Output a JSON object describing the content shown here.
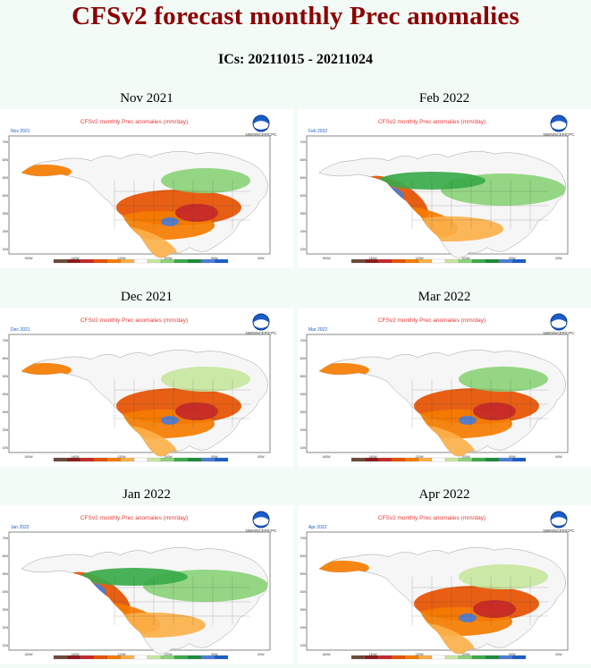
{
  "page": {
    "title": "CFSv2 forecast monthly Prec anomalies",
    "ics": "ICs: 20211015 - 20211024"
  },
  "map_common": {
    "header": "CFSv2 monthly Prec anomalies (mm/day)",
    "agency": "NWS/NCEP/CPC",
    "lat_labels": [
      "70N",
      "60N",
      "50N",
      "40N",
      "30N",
      "20N",
      "10N"
    ],
    "lon_labels": [
      "160W",
      "140W",
      "120W",
      "100W",
      "80W",
      "60W"
    ],
    "palette": [
      "#6b4a3a",
      "#8b1a1a",
      "#c62828",
      "#e65100",
      "#f57c00",
      "#fbb04a",
      "#ffffff",
      "#c8e6a0",
      "#8bd37a",
      "#3aaa4a",
      "#1b8a3a",
      "#4a7dd6",
      "#1a5dc8"
    ],
    "icon": "noaa-logo-icon"
  },
  "panels": [
    {
      "id": "nov-2021",
      "label": "Nov 2021",
      "corner": "Nov 2021",
      "dry_bias": "south"
    },
    {
      "id": "feb-2022",
      "label": "Feb 2022",
      "corner": "Feb 2022",
      "dry_bias": "southwest"
    },
    {
      "id": "dec-2021",
      "label": "Dec 2021",
      "corner": "Dec 2021",
      "dry_bias": "south"
    },
    {
      "id": "mar-2022",
      "label": "Mar 2022",
      "corner": "Mar 2022",
      "dry_bias": "south"
    },
    {
      "id": "jan-2022",
      "label": "Jan 2022",
      "corner": "Jan 2022",
      "dry_bias": "southwest"
    },
    {
      "id": "apr-2022",
      "label": "Apr 2022",
      "corner": "Apr 2022",
      "dry_bias": "south"
    }
  ]
}
